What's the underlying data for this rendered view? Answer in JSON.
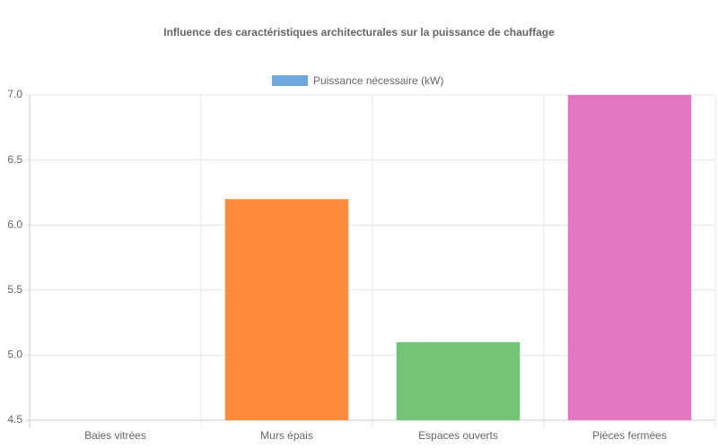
{
  "chart_data": {
    "type": "bar",
    "title": "Influence des caractéristiques architecturales sur la puissance de chauffage",
    "categories": [
      "Baies vitrées",
      "Murs épais",
      "Espaces ouverts",
      "Pièces fermées"
    ],
    "series": [
      {
        "name": "Puissance nécessaire (kW)",
        "colors": [
          "#6fa8dc",
          "#fd8c3c",
          "#74c476",
          "#e377c2"
        ],
        "values": [
          4.5,
          6.2,
          5.1,
          7.0
        ]
      }
    ],
    "ylim": [
      4.5,
      7.0
    ],
    "yticks": [
      4.5,
      {
        "value": 5.0,
        "label": "5.0"
      },
      5.5,
      {
        "value": 6.0,
        "label": "6.0"
      },
      6.5,
      {
        "value": 7.0,
        "label": "7.0"
      }
    ],
    "grid": true,
    "legend": "top"
  }
}
